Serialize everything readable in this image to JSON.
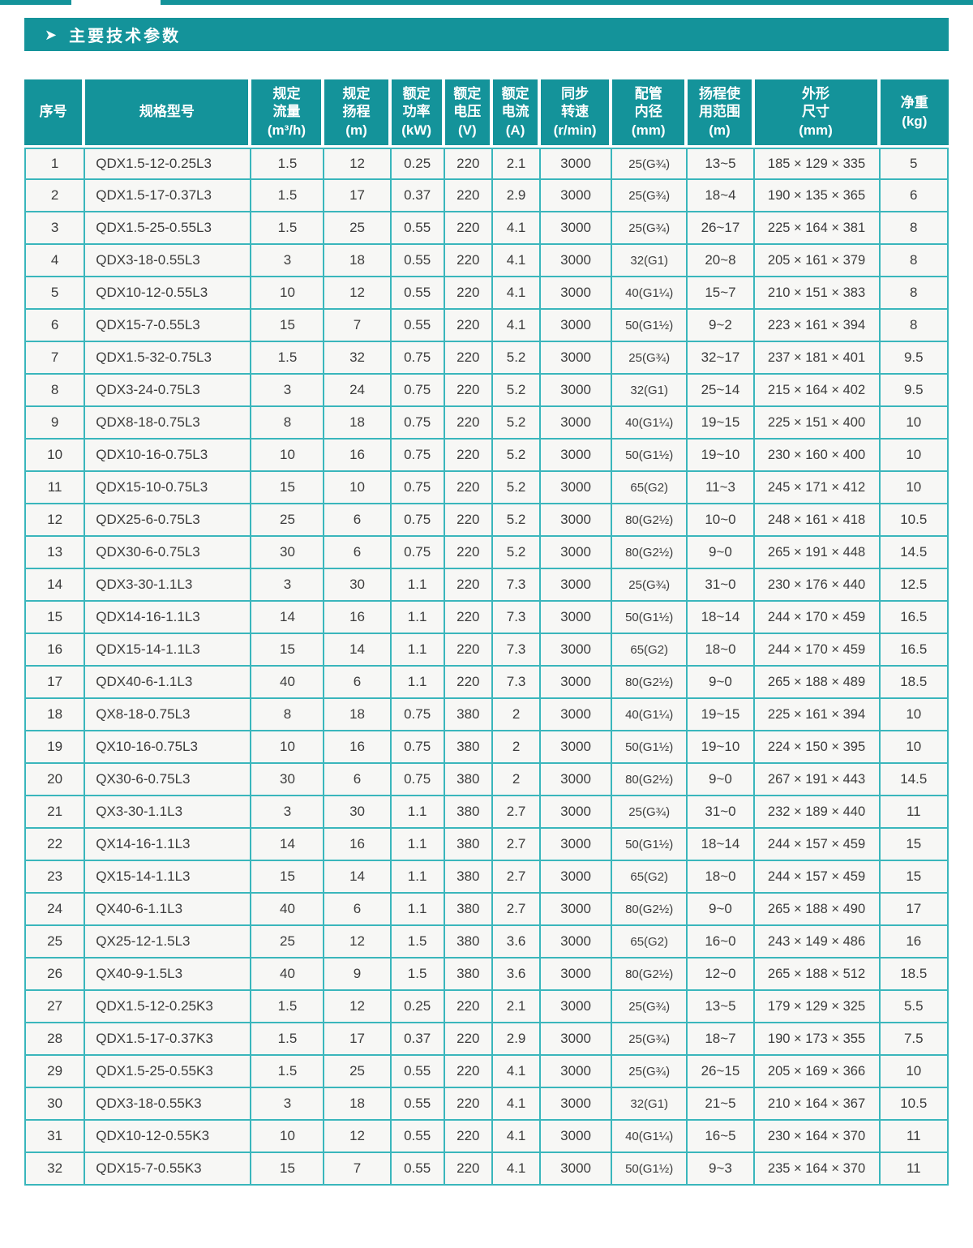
{
  "colors": {
    "accent_teal": "#14939a",
    "grid_cyan": "#3ab6bc",
    "row_background": "#f7f7f5",
    "header_text": "#ffffff",
    "body_text": "#3c3c3c"
  },
  "section": {
    "arrow_glyph": "➤",
    "title": "主要技术参数"
  },
  "table": {
    "column_keys": [
      "index",
      "model",
      "flow",
      "head",
      "power",
      "voltage",
      "current",
      "speed",
      "pipe",
      "head-range",
      "dimensions",
      "weight"
    ],
    "headers": [
      "序号",
      "规格型号",
      "规定\n流量\n(m³/h)",
      "规定\n扬程\n(m)",
      "额定\n功率\n(kW)",
      "额定\n电压\n(V)",
      "额定\n电流\n(A)",
      "同步\n转速\n(r/min)",
      "配管\n内径\n(mm)",
      "扬程使\n用范围\n(m)",
      "外形\n尺寸\n(mm)",
      "净重\n(kg)"
    ],
    "rows": [
      [
        "1",
        "QDX1.5-12-0.25L3",
        "1.5",
        "12",
        "0.25",
        "220",
        "2.1",
        "3000",
        "25(G¾)",
        "13~5",
        "185 × 129 × 335",
        "5"
      ],
      [
        "2",
        "QDX1.5-17-0.37L3",
        "1.5",
        "17",
        "0.37",
        "220",
        "2.9",
        "3000",
        "25(G¾)",
        "18~4",
        "190 × 135 × 365",
        "6"
      ],
      [
        "3",
        "QDX1.5-25-0.55L3",
        "1.5",
        "25",
        "0.55",
        "220",
        "4.1",
        "3000",
        "25(G¾)",
        "26~17",
        "225 × 164 × 381",
        "8"
      ],
      [
        "4",
        "QDX3-18-0.55L3",
        "3",
        "18",
        "0.55",
        "220",
        "4.1",
        "3000",
        "32(G1)",
        "20~8",
        "205 × 161 × 379",
        "8"
      ],
      [
        "5",
        "QDX10-12-0.55L3",
        "10",
        "12",
        "0.55",
        "220",
        "4.1",
        "3000",
        "40(G1¼)",
        "15~7",
        "210 × 151 × 383",
        "8"
      ],
      [
        "6",
        "QDX15-7-0.55L3",
        "15",
        "7",
        "0.55",
        "220",
        "4.1",
        "3000",
        "50(G1½)",
        "9~2",
        "223 × 161 × 394",
        "8"
      ],
      [
        "7",
        "QDX1.5-32-0.75L3",
        "1.5",
        "32",
        "0.75",
        "220",
        "5.2",
        "3000",
        "25(G¾)",
        "32~17",
        "237 × 181 × 401",
        "9.5"
      ],
      [
        "8",
        "QDX3-24-0.75L3",
        "3",
        "24",
        "0.75",
        "220",
        "5.2",
        "3000",
        "32(G1)",
        "25~14",
        "215 × 164 × 402",
        "9.5"
      ],
      [
        "9",
        "QDX8-18-0.75L3",
        "8",
        "18",
        "0.75",
        "220",
        "5.2",
        "3000",
        "40(G1¼)",
        "19~15",
        "225 × 151 × 400",
        "10"
      ],
      [
        "10",
        "QDX10-16-0.75L3",
        "10",
        "16",
        "0.75",
        "220",
        "5.2",
        "3000",
        "50(G1½)",
        "19~10",
        "230 × 160 × 400",
        "10"
      ],
      [
        "11",
        "QDX15-10-0.75L3",
        "15",
        "10",
        "0.75",
        "220",
        "5.2",
        "3000",
        "65(G2)",
        "11~3",
        "245 × 171 × 412",
        "10"
      ],
      [
        "12",
        "QDX25-6-0.75L3",
        "25",
        "6",
        "0.75",
        "220",
        "5.2",
        "3000",
        "80(G2½)",
        "10~0",
        "248 × 161 × 418",
        "10.5"
      ],
      [
        "13",
        "QDX30-6-0.75L3",
        "30",
        "6",
        "0.75",
        "220",
        "5.2",
        "3000",
        "80(G2½)",
        "9~0",
        "265 × 191 × 448",
        "14.5"
      ],
      [
        "14",
        "QDX3-30-1.1L3",
        "3",
        "30",
        "1.1",
        "220",
        "7.3",
        "3000",
        "25(G¾)",
        "31~0",
        "230 × 176 × 440",
        "12.5"
      ],
      [
        "15",
        "QDX14-16-1.1L3",
        "14",
        "16",
        "1.1",
        "220",
        "7.3",
        "3000",
        "50(G1½)",
        "18~14",
        "244 × 170 × 459",
        "16.5"
      ],
      [
        "16",
        "QDX15-14-1.1L3",
        "15",
        "14",
        "1.1",
        "220",
        "7.3",
        "3000",
        "65(G2)",
        "18~0",
        "244 × 170 × 459",
        "16.5"
      ],
      [
        "17",
        "QDX40-6-1.1L3",
        "40",
        "6",
        "1.1",
        "220",
        "7.3",
        "3000",
        "80(G2½)",
        "9~0",
        "265 × 188 × 489",
        "18.5"
      ],
      [
        "18",
        "QX8-18-0.75L3",
        "8",
        "18",
        "0.75",
        "380",
        "2",
        "3000",
        "40(G1¼)",
        "19~15",
        "225 × 161 × 394",
        "10"
      ],
      [
        "19",
        "QX10-16-0.75L3",
        "10",
        "16",
        "0.75",
        "380",
        "2",
        "3000",
        "50(G1½)",
        "19~10",
        "224 × 150 × 395",
        "10"
      ],
      [
        "20",
        "QX30-6-0.75L3",
        "30",
        "6",
        "0.75",
        "380",
        "2",
        "3000",
        "80(G2½)",
        "9~0",
        "267 × 191 × 443",
        "14.5"
      ],
      [
        "21",
        "QX3-30-1.1L3",
        "3",
        "30",
        "1.1",
        "380",
        "2.7",
        "3000",
        "25(G¾)",
        "31~0",
        "232 × 189 × 440",
        "11"
      ],
      [
        "22",
        "QX14-16-1.1L3",
        "14",
        "16",
        "1.1",
        "380",
        "2.7",
        "3000",
        "50(G1½)",
        "18~14",
        "244 × 157 × 459",
        "15"
      ],
      [
        "23",
        "QX15-14-1.1L3",
        "15",
        "14",
        "1.1",
        "380",
        "2.7",
        "3000",
        "65(G2)",
        "18~0",
        "244 × 157 × 459",
        "15"
      ],
      [
        "24",
        "QX40-6-1.1L3",
        "40",
        "6",
        "1.1",
        "380",
        "2.7",
        "3000",
        "80(G2½)",
        "9~0",
        "265 × 188 × 490",
        "17"
      ],
      [
        "25",
        "QX25-12-1.5L3",
        "25",
        "12",
        "1.5",
        "380",
        "3.6",
        "3000",
        "65(G2)",
        "16~0",
        "243 × 149 × 486",
        "16"
      ],
      [
        "26",
        "QX40-9-1.5L3",
        "40",
        "9",
        "1.5",
        "380",
        "3.6",
        "3000",
        "80(G2½)",
        "12~0",
        "265 × 188 × 512",
        "18.5"
      ],
      [
        "27",
        "QDX1.5-12-0.25K3",
        "1.5",
        "12",
        "0.25",
        "220",
        "2.1",
        "3000",
        "25(G¾)",
        "13~5",
        "179 × 129 × 325",
        "5.5"
      ],
      [
        "28",
        "QDX1.5-17-0.37K3",
        "1.5",
        "17",
        "0.37",
        "220",
        "2.9",
        "3000",
        "25(G¾)",
        "18~7",
        "190 × 173 × 355",
        "7.5"
      ],
      [
        "29",
        "QDX1.5-25-0.55K3",
        "1.5",
        "25",
        "0.55",
        "220",
        "4.1",
        "3000",
        "25(G¾)",
        "26~15",
        "205 × 169 × 366",
        "10"
      ],
      [
        "30",
        "QDX3-18-0.55K3",
        "3",
        "18",
        "0.55",
        "220",
        "4.1",
        "3000",
        "32(G1)",
        "21~5",
        "210 × 164 × 367",
        "10.5"
      ],
      [
        "31",
        "QDX10-12-0.55K3",
        "10",
        "12",
        "0.55",
        "220",
        "4.1",
        "3000",
        "40(G1¼)",
        "16~5",
        "230 × 164 × 370",
        "11"
      ],
      [
        "32",
        "QDX15-7-0.55K3",
        "15",
        "7",
        "0.55",
        "220",
        "4.1",
        "3000",
        "50(G1½)",
        "9~3",
        "235 × 164 × 370",
        "11"
      ]
    ]
  }
}
